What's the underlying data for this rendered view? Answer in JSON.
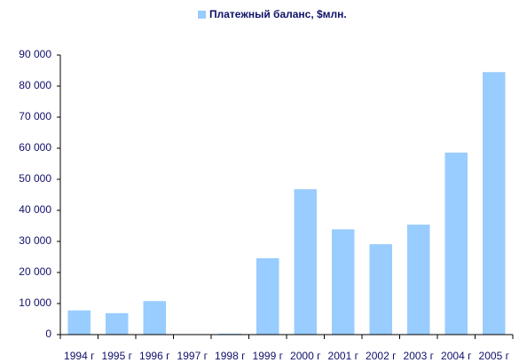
{
  "chart_data": {
    "type": "bar",
    "categories": [
      "1994 г",
      "1995 г",
      "1996 г",
      "1997 г",
      "1998 г",
      "1999 г",
      "2000 г",
      "2001 г",
      "2002 г",
      "2003 г",
      "2004 г",
      "2005 г"
    ],
    "series": [
      {
        "name": "Платежный баланс, $млн.",
        "color": "#99ccff",
        "values": [
          7800,
          6900,
          10800,
          0,
          300,
          24600,
          46800,
          33900,
          29100,
          35400,
          58600,
          84500
        ]
      }
    ],
    "ylim": [
      0,
      90000
    ],
    "yticks": [
      0,
      {
        "value": 10000,
        "label": "10 000"
      },
      {
        "value": 20000,
        "label": "20 000"
      },
      {
        "value": 30000,
        "label": "30 000"
      },
      {
        "value": 40000,
        "label": "40 000"
      },
      {
        "value": 50000,
        "label": "50 000"
      },
      {
        "value": 60000,
        "label": "60 000"
      },
      {
        "value": 70000,
        "label": "70 000"
      },
      {
        "value": 80000,
        "label": "80 000"
      },
      {
        "value": 90000,
        "label": "90 000"
      }
    ],
    "grid": false,
    "legend": "top"
  }
}
